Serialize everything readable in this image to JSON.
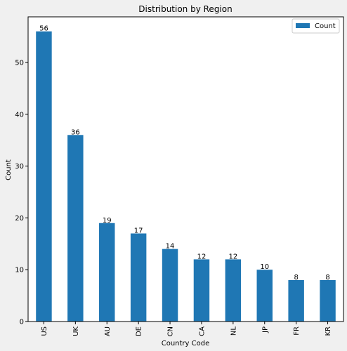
{
  "chart_data": {
    "type": "bar",
    "title": "Distribution by Region",
    "xlabel": "Country Code",
    "ylabel": "Count",
    "categories": [
      "US",
      "UK",
      "AU",
      "DE",
      "CN",
      "CA",
      "NL",
      "JP",
      "FR",
      "KR"
    ],
    "series": [
      {
        "name": "Count",
        "values": [
          56,
          36,
          19,
          17,
          14,
          12,
          12,
          10,
          8,
          8
        ]
      }
    ],
    "ylim": [
      0,
      58.8
    ],
    "yticks": [
      0,
      10,
      20,
      30,
      40,
      50
    ],
    "grid": false,
    "legend": "top-right",
    "bar_color": "#1f77b4"
  }
}
